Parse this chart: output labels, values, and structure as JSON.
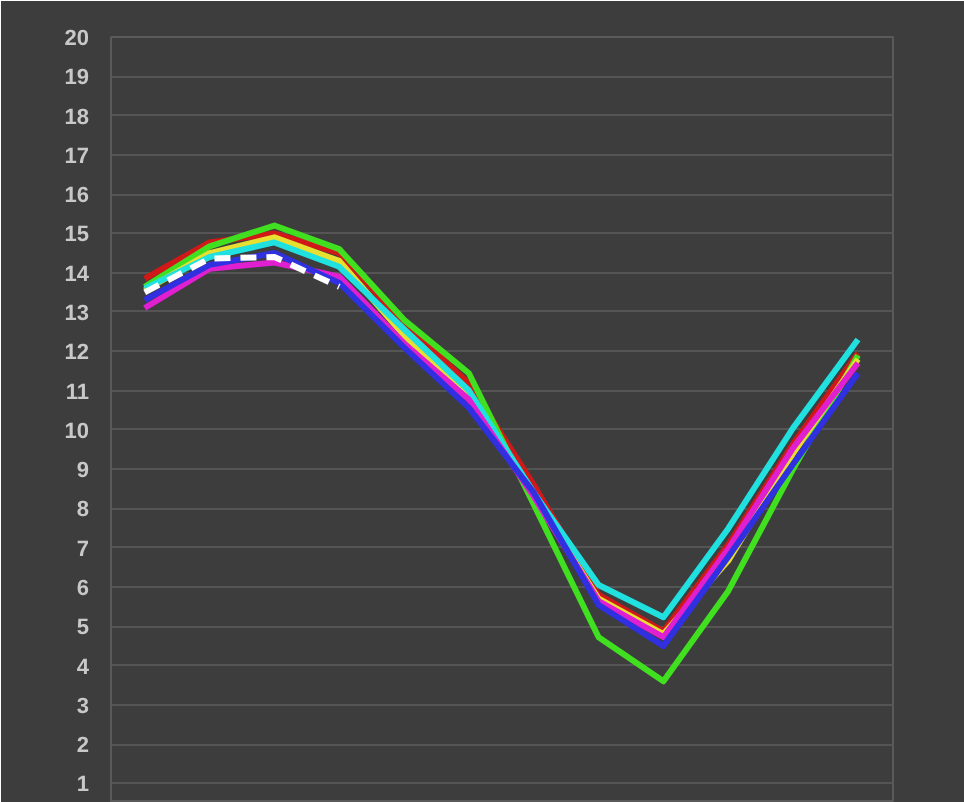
{
  "chart_data": {
    "type": "line",
    "categories": [
      null,
      null,
      null,
      null,
      null,
      null,
      null,
      null,
      null,
      null,
      null,
      null
    ],
    "ylim": [
      0.5,
      20
    ],
    "yticks": [
      1,
      2,
      3,
      4,
      5,
      6,
      7,
      8,
      9,
      10,
      11,
      12,
      13,
      14,
      15,
      16,
      17,
      18,
      19,
      20
    ],
    "grid": "y",
    "tick_labels": "y",
    "marker": "none",
    "line_style": "solid",
    "series": [
      {
        "color": "#d01818",
        "values": [
          13.85,
          14.77,
          15.0,
          14.5,
          12.7,
          11.18,
          8.6,
          5.8,
          4.87,
          7.08,
          9.64,
          11.95
        ]
      },
      {
        "color": "#40e020",
        "values": [
          13.64,
          14.67,
          15.2,
          14.6,
          12.8,
          11.44,
          8.1,
          4.72,
          3.6,
          5.9,
          9.0,
          11.9
        ]
      },
      {
        "color": "#e8e030",
        "values": [
          13.55,
          14.5,
          14.9,
          14.3,
          12.4,
          10.9,
          8.3,
          5.7,
          4.8,
          6.67,
          9.4,
          11.8
        ]
      },
      {
        "color": "#20e0e0",
        "values": [
          13.6,
          14.4,
          14.77,
          14.15,
          12.56,
          11.0,
          8.4,
          6.05,
          5.23,
          7.49,
          10.05,
          12.3
        ]
      },
      {
        "color": "#e020d0",
        "values": [
          13.1,
          14.1,
          14.26,
          13.9,
          12.2,
          10.77,
          8.3,
          5.64,
          4.72,
          6.97,
          9.54,
          11.7
        ]
      },
      {
        "color": "#3030e0",
        "values": [
          13.3,
          14.2,
          14.5,
          13.74,
          12.1,
          10.56,
          8.4,
          5.54,
          4.5,
          6.77,
          9.13,
          11.44
        ]
      },
      {
        "color": "#ffffff",
        "line_style": "dashed",
        "values": [
          13.5,
          14.36,
          14.4,
          13.64,
          null,
          null,
          null,
          null,
          null,
          null,
          null,
          null
        ]
      }
    ]
  }
}
